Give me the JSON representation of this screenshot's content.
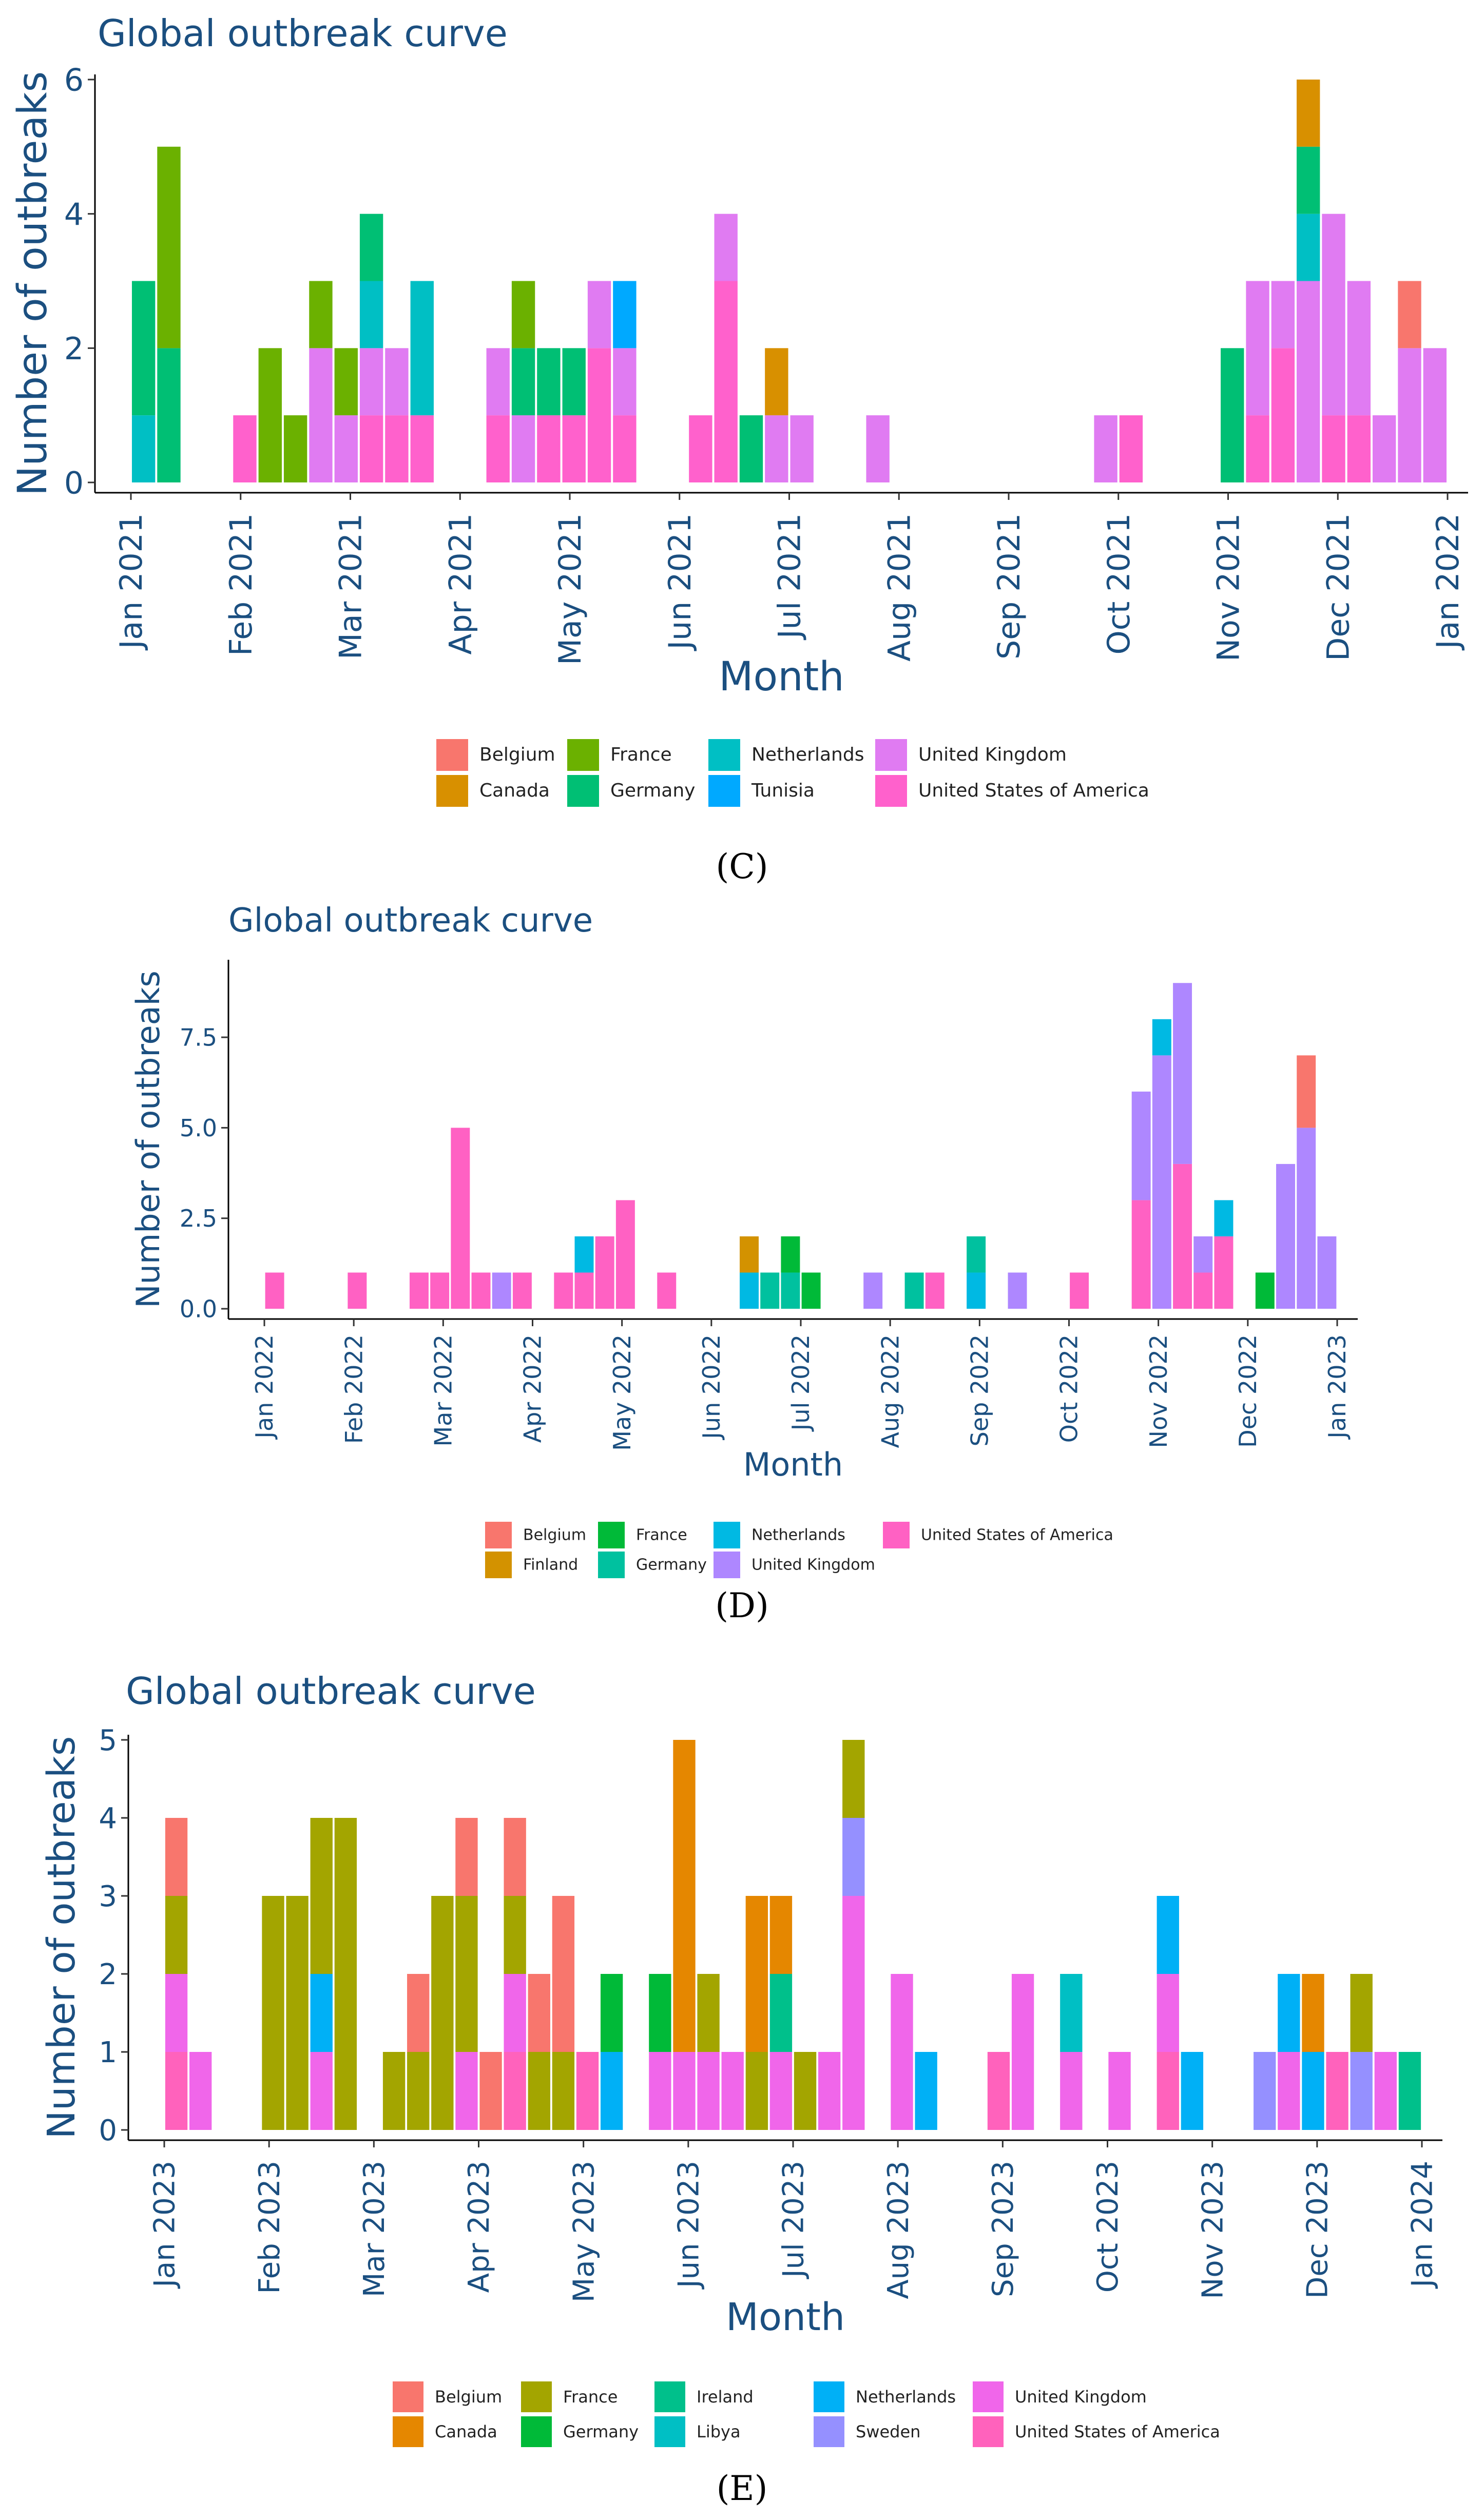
{
  "captions": [
    "(C)",
    "(D)",
    "(E)"
  ],
  "chart_data": [
    {
      "type": "bar",
      "stacked": true,
      "title": "Global outbreak curve",
      "xlabel": "Month",
      "ylabel": "Number of outbreaks",
      "ylim": [
        0,
        6
      ],
      "yticks": [
        "0",
        "2",
        "4",
        "6"
      ],
      "xticks": [
        "Jan 2021",
        "Feb 2021",
        "Mar 2021",
        "Apr 2021",
        "May 2021",
        "Jun 2021",
        "Jul 2021",
        "Aug 2021",
        "Sep 2021",
        "Oct 2021",
        "Nov 2021",
        "Dec 2021",
        "Jan 2022"
      ],
      "legend": [
        {
          "name": "Belgium",
          "color": "#F8766D"
        },
        {
          "name": "Canada",
          "color": "#D89000"
        },
        {
          "name": "France",
          "color": "#6BB100"
        },
        {
          "name": "Germany",
          "color": "#00BF74"
        },
        {
          "name": "Netherlands",
          "color": "#00BFC4"
        },
        {
          "name": "Tunisia",
          "color": "#00A9FF"
        },
        {
          "name": "United Kingdom",
          "color": "#E07BF2"
        },
        {
          "name": "United States of America",
          "color": "#FF61CC"
        }
      ],
      "bars": [
        {
          "week": 0,
          "stack": {
            "Netherlands": 1,
            "Germany": 2
          }
        },
        {
          "week": 1,
          "stack": {
            "Germany": 2,
            "France": 3
          }
        },
        {
          "week": 4,
          "stack": {
            "United States of America": 1
          }
        },
        {
          "week": 5,
          "stack": {
            "France": 2
          }
        },
        {
          "week": 6,
          "stack": {
            "France": 1
          }
        },
        {
          "week": 7,
          "stack": {
            "United Kingdom": 2,
            "France": 1
          }
        },
        {
          "week": 8,
          "stack": {
            "United Kingdom": 1,
            "France": 1
          }
        },
        {
          "week": 9,
          "stack": {
            "United States of America": 1,
            "United Kingdom": 1,
            "Netherlands": 1,
            "Germany": 1
          }
        },
        {
          "week": 10,
          "stack": {
            "United States of America": 1,
            "United Kingdom": 1
          }
        },
        {
          "week": 11,
          "stack": {
            "United States of America": 1,
            "Netherlands": 2
          }
        },
        {
          "week": 14,
          "stack": {
            "United States of America": 1,
            "United Kingdom": 1
          }
        },
        {
          "week": 15,
          "stack": {
            "United Kingdom": 1,
            "Germany": 1,
            "France": 1
          }
        },
        {
          "week": 16,
          "stack": {
            "United States of America": 1,
            "Germany": 1
          }
        },
        {
          "week": 17,
          "stack": {
            "United States of America": 1,
            "Germany": 1
          }
        },
        {
          "week": 18,
          "stack": {
            "United States of America": 2,
            "United Kingdom": 1
          }
        },
        {
          "week": 19,
          "stack": {
            "United States of America": 1,
            "United Kingdom": 1,
            "Tunisia": 1
          }
        },
        {
          "week": 22,
          "stack": {
            "United States of America": 1
          }
        },
        {
          "week": 23,
          "stack": {
            "United States of America": 3,
            "United Kingdom": 1
          }
        },
        {
          "week": 24,
          "stack": {
            "Germany": 1
          }
        },
        {
          "week": 25,
          "stack": {
            "United Kingdom": 1,
            "Canada": 1
          }
        },
        {
          "week": 26,
          "stack": {
            "United Kingdom": 1
          }
        },
        {
          "week": 29,
          "stack": {
            "United Kingdom": 1
          }
        },
        {
          "week": 38,
          "stack": {
            "United Kingdom": 1
          }
        },
        {
          "week": 39,
          "stack": {
            "United States of America": 1
          }
        },
        {
          "week": 43,
          "stack": {
            "Germany": 2
          }
        },
        {
          "week": 44,
          "stack": {
            "United States of America": 1,
            "United Kingdom": 2
          }
        },
        {
          "week": 45,
          "stack": {
            "United States of America": 2,
            "United Kingdom": 1
          }
        },
        {
          "week": 46,
          "stack": {
            "United Kingdom": 3,
            "Netherlands": 1,
            "Germany": 1,
            "Canada": 1
          }
        },
        {
          "week": 47,
          "stack": {
            "United States of America": 1,
            "United Kingdom": 3
          }
        },
        {
          "week": 48,
          "stack": {
            "United States of America": 1,
            "United Kingdom": 2
          }
        },
        {
          "week": 49,
          "stack": {
            "United Kingdom": 1
          }
        },
        {
          "week": 50,
          "stack": {
            "United Kingdom": 2,
            "Belgium": 1
          }
        },
        {
          "week": 51,
          "stack": {
            "United Kingdom": 2
          }
        }
      ]
    },
    {
      "type": "bar",
      "stacked": true,
      "title": "Global outbreak curve",
      "xlabel": "Month",
      "ylabel": "Number of outbreaks",
      "ylim": [
        0,
        9.5
      ],
      "yticks": [
        "0.0",
        "2.5",
        "5.0",
        "7.5"
      ],
      "xticks": [
        "Jan 2022",
        "Feb 2022",
        "Mar 2022",
        "Apr 2022",
        "May 2022",
        "Jun 2022",
        "Jul 2022",
        "Aug 2022",
        "Sep 2022",
        "Oct 2022",
        "Nov 2022",
        "Dec 2022",
        "Jan 2023"
      ],
      "legend": [
        {
          "name": "Belgium",
          "color": "#F8766D"
        },
        {
          "name": "Finland",
          "color": "#D39200"
        },
        {
          "name": "France",
          "color": "#00BA38"
        },
        {
          "name": "Germany",
          "color": "#00C19F"
        },
        {
          "name": "Netherlands",
          "color": "#00B9E3"
        },
        {
          "name": "United Kingdom",
          "color": "#AE87FF"
        },
        {
          "name": "United States of America",
          "color": "#FF61C3"
        }
      ],
      "bars": [
        {
          "week": 0,
          "stack": {
            "United States of America": 1
          }
        },
        {
          "week": 4,
          "stack": {
            "United States of America": 1
          }
        },
        {
          "week": 7,
          "stack": {
            "United States of America": 1
          }
        },
        {
          "week": 8,
          "stack": {
            "United States of America": 1
          }
        },
        {
          "week": 9,
          "stack": {
            "United States of America": 5
          }
        },
        {
          "week": 10,
          "stack": {
            "United States of America": 1
          }
        },
        {
          "week": 11,
          "stack": {
            "United Kingdom": 1
          }
        },
        {
          "week": 12,
          "stack": {
            "United States of America": 1
          }
        },
        {
          "week": 14,
          "stack": {
            "United States of America": 1
          }
        },
        {
          "week": 15,
          "stack": {
            "United States of America": 1,
            "Netherlands": 1
          }
        },
        {
          "week": 16,
          "stack": {
            "United States of America": 2
          }
        },
        {
          "week": 17,
          "stack": {
            "United States of America": 3
          }
        },
        {
          "week": 19,
          "stack": {
            "United States of America": 1
          }
        },
        {
          "week": 23,
          "stack": {
            "Netherlands": 1,
            "Finland": 1
          }
        },
        {
          "week": 24,
          "stack": {
            "Germany": 1
          }
        },
        {
          "week": 25,
          "stack": {
            "Germany": 1,
            "France": 1
          }
        },
        {
          "week": 26,
          "stack": {
            "France": 1
          }
        },
        {
          "week": 29,
          "stack": {
            "United Kingdom": 1
          }
        },
        {
          "week": 31,
          "stack": {
            "Germany": 1
          }
        },
        {
          "week": 32,
          "stack": {
            "United States of America": 1
          }
        },
        {
          "week": 34,
          "stack": {
            "Netherlands": 1,
            "Germany": 1
          }
        },
        {
          "week": 36,
          "stack": {
            "United Kingdom": 1
          }
        },
        {
          "week": 39,
          "stack": {
            "United States of America": 1
          }
        },
        {
          "week": 42,
          "stack": {
            "United States of America": 3,
            "United Kingdom": 3
          }
        },
        {
          "week": 43,
          "stack": {
            "United Kingdom": 7,
            "Netherlands": 1
          }
        },
        {
          "week": 44,
          "stack": {
            "United States of America": 4,
            "United Kingdom": 5
          }
        },
        {
          "week": 45,
          "stack": {
            "United States of America": 1,
            "United Kingdom": 1
          }
        },
        {
          "week": 46,
          "stack": {
            "United States of America": 2,
            "Netherlands": 1
          }
        },
        {
          "week": 48,
          "stack": {
            "France": 1
          }
        },
        {
          "week": 49,
          "stack": {
            "United Kingdom": 4
          }
        },
        {
          "week": 50,
          "stack": {
            "United Kingdom": 5,
            "Belgium": 2
          }
        },
        {
          "week": 51,
          "stack": {
            "United Kingdom": 2
          }
        }
      ]
    },
    {
      "type": "bar",
      "stacked": true,
      "title": "Global outbreak curve",
      "xlabel": "Month",
      "ylabel": "Number of outbreaks",
      "ylim": [
        0,
        5
      ],
      "yticks": [
        "0",
        "1",
        "2",
        "3",
        "4",
        "5"
      ],
      "xticks": [
        "Jan 2023",
        "Feb 2023",
        "Mar 2023",
        "Apr 2023",
        "May 2023",
        "Jun 2023",
        "Jul 2023",
        "Aug 2023",
        "Sep 2023",
        "Oct 2023",
        "Nov 2023",
        "Dec 2023",
        "Jan 2024"
      ],
      "legend": [
        {
          "name": "Belgium",
          "color": "#F8766D"
        },
        {
          "name": "Canada",
          "color": "#E58700"
        },
        {
          "name": "France",
          "color": "#A3A500"
        },
        {
          "name": "Germany",
          "color": "#00BA38"
        },
        {
          "name": "Ireland",
          "color": "#00C08B"
        },
        {
          "name": "Libya",
          "color": "#00BFC4"
        },
        {
          "name": "Netherlands",
          "color": "#00B0F6"
        },
        {
          "name": "Sweden",
          "color": "#9590FF"
        },
        {
          "name": "United Kingdom",
          "color": "#F066EA"
        },
        {
          "name": "United States of America",
          "color": "#FF62BC"
        }
      ],
      "bars": [
        {
          "week": 0,
          "stack": {
            "United States of America": 1,
            "United Kingdom": 1,
            "France": 1,
            "Belgium": 1
          }
        },
        {
          "week": 1,
          "stack": {
            "United Kingdom": 1
          }
        },
        {
          "week": 4,
          "stack": {
            "France": 3
          }
        },
        {
          "week": 5,
          "stack": {
            "France": 3
          }
        },
        {
          "week": 6,
          "stack": {
            "United Kingdom": 1,
            "Netherlands": 1,
            "France": 2
          }
        },
        {
          "week": 7,
          "stack": {
            "France": 4
          }
        },
        {
          "week": 9,
          "stack": {
            "France": 1
          }
        },
        {
          "week": 10,
          "stack": {
            "France": 1,
            "Belgium": 1
          }
        },
        {
          "week": 11,
          "stack": {
            "France": 3
          }
        },
        {
          "week": 12,
          "stack": {
            "United Kingdom": 1,
            "France": 2,
            "Belgium": 1
          }
        },
        {
          "week": 13,
          "stack": {
            "Belgium": 1
          }
        },
        {
          "week": 14,
          "stack": {
            "United States of America": 1,
            "United Kingdom": 1,
            "France": 1,
            "Belgium": 1
          }
        },
        {
          "week": 15,
          "stack": {
            "France": 1,
            "Belgium": 1
          }
        },
        {
          "week": 16,
          "stack": {
            "France": 1,
            "Belgium": 2
          }
        },
        {
          "week": 17,
          "stack": {
            "United States of America": 1
          }
        },
        {
          "week": 18,
          "stack": {
            "Netherlands": 1,
            "Germany": 1
          }
        },
        {
          "week": 20,
          "stack": {
            "United Kingdom": 1,
            "Germany": 1
          }
        },
        {
          "week": 21,
          "stack": {
            "United Kingdom": 1,
            "Canada": 4
          }
        },
        {
          "week": 22,
          "stack": {
            "United Kingdom": 1,
            "France": 1
          }
        },
        {
          "week": 23,
          "stack": {
            "United Kingdom": 1
          }
        },
        {
          "week": 24,
          "stack": {
            "France": 1,
            "Canada": 2
          }
        },
        {
          "week": 25,
          "stack": {
            "United Kingdom": 1,
            "Ireland": 1,
            "Canada": 1
          }
        },
        {
          "week": 26,
          "stack": {
            "France": 1
          }
        },
        {
          "week": 27,
          "stack": {
            "United Kingdom": 1
          }
        },
        {
          "week": 28,
          "stack": {
            "United Kingdom": 3,
            "Sweden": 1,
            "France": 1
          }
        },
        {
          "week": 30,
          "stack": {
            "United Kingdom": 2
          }
        },
        {
          "week": 31,
          "stack": {
            "Netherlands": 1
          }
        },
        {
          "week": 34,
          "stack": {
            "United States of America": 1
          }
        },
        {
          "week": 35,
          "stack": {
            "United Kingdom": 2
          }
        },
        {
          "week": 37,
          "stack": {
            "United Kingdom": 1,
            "Libya": 1
          }
        },
        {
          "week": 39,
          "stack": {
            "United Kingdom": 1
          }
        },
        {
          "week": 41,
          "stack": {
            "United States of America": 1,
            "United Kingdom": 1,
            "Netherlands": 1
          }
        },
        {
          "week": 42,
          "stack": {
            "Netherlands": 1
          }
        },
        {
          "week": 45,
          "stack": {
            "Sweden": 1
          }
        },
        {
          "week": 46,
          "stack": {
            "United Kingdom": 1,
            "Netherlands": 1
          }
        },
        {
          "week": 47,
          "stack": {
            "Netherlands": 1,
            "Canada": 1
          }
        },
        {
          "week": 48,
          "stack": {
            "United States of America": 1
          }
        },
        {
          "week": 49,
          "stack": {
            "Sweden": 1,
            "France": 1
          }
        },
        {
          "week": 50,
          "stack": {
            "United Kingdom": 1
          }
        },
        {
          "week": 51,
          "stack": {
            "Ireland": 1
          }
        }
      ]
    }
  ]
}
